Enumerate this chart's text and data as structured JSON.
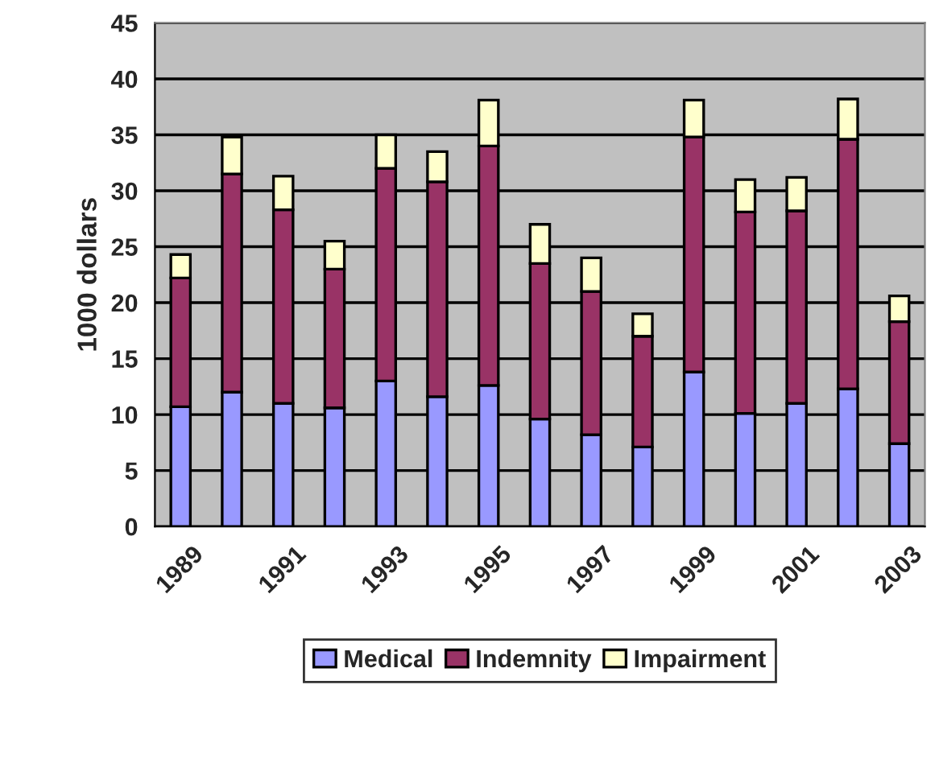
{
  "chart_data": {
    "type": "bar",
    "stacked": true,
    "ylabel": "1000 dollars",
    "categories": [
      "1989",
      null,
      "1991",
      null,
      "1993",
      null,
      "1995",
      null,
      "1997",
      null,
      "1999",
      null,
      "2001",
      null,
      "2003"
    ],
    "series": [
      {
        "name": "Medical",
        "color": "#9999ff",
        "values": [
          10.7,
          12.0,
          11.0,
          10.6,
          13.0,
          11.6,
          12.6,
          9.6,
          8.2,
          7.1,
          13.8,
          10.1,
          11.0,
          12.3,
          7.4
        ]
      },
      {
        "name": "Indemnity",
        "color": "#993366",
        "values": [
          11.5,
          19.5,
          17.3,
          12.4,
          19.0,
          19.2,
          21.4,
          13.9,
          12.8,
          9.9,
          21.0,
          18.0,
          17.2,
          22.3,
          10.9
        ]
      },
      {
        "name": "Impairment",
        "color": "#ffffcc",
        "values": [
          2.1,
          3.3,
          3.0,
          2.5,
          3.0,
          2.7,
          4.1,
          3.5,
          3.0,
          2.0,
          3.3,
          2.9,
          3.0,
          3.6,
          2.3
        ]
      }
    ],
    "ylim": [
      0,
      45
    ],
    "yticks": [
      0,
      5,
      10,
      15,
      20,
      25,
      30,
      35,
      40,
      45
    ],
    "grid": "y",
    "legend": "bottom"
  }
}
